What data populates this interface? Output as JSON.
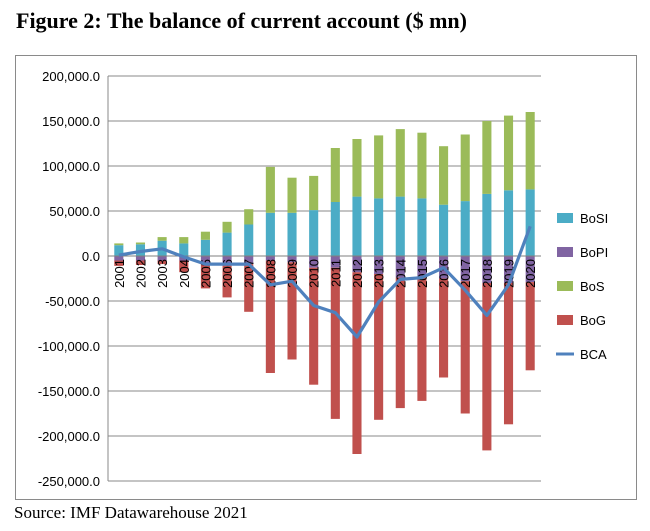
{
  "figure_title": "Figure 2: The balance of current account ($ mn)",
  "source": "Source: IMF Datawarehouse 2021",
  "colors": {
    "BoSI": "#4bacc6",
    "BoPI": "#8064a2",
    "BoS": "#9bbb59",
    "BoG": "#c0504d",
    "BCA": "#4f81bd",
    "grid": "#888888"
  },
  "chart_data": {
    "type": "bar",
    "stacked": true,
    "title": "Figure 2: The balance of current account ($ mn)",
    "xlabel": "",
    "ylabel": "",
    "ylim": [
      -250000,
      200000
    ],
    "yticks": [
      200000,
      150000,
      100000,
      50000,
      0,
      -50000,
      -100000,
      -150000,
      -200000,
      -250000
    ],
    "ytick_labels": [
      "200,000.0",
      "150,000.0",
      "100,000.0",
      "50,000.0",
      "0.0",
      "-50,000.0",
      "-100,000.0",
      "-150,000.0",
      "-200,000.0",
      "-250,000.0"
    ],
    "grid": true,
    "legend_position": "right",
    "categories": [
      "2001",
      "2002",
      "2003",
      "2004",
      "2005",
      "2006",
      "2007",
      "2008",
      "2009",
      "2010",
      "2011",
      "2012",
      "2013",
      "2014",
      "2015",
      "2016",
      "2017",
      "2018",
      "2019",
      "2020"
    ],
    "series": [
      {
        "name": "BoSI",
        "kind": "bar",
        "values": [
          12000,
          13000,
          17000,
          14000,
          18000,
          26000,
          35000,
          48000,
          48000,
          51000,
          60000,
          66000,
          64000,
          66000,
          64000,
          57000,
          61000,
          69000,
          73000,
          74000
        ]
      },
      {
        "name": "BoPI",
        "kind": "bar",
        "values": [
          -5000,
          -5000,
          -5000,
          -5000,
          -8000,
          -8000,
          -9000,
          -5000,
          -7000,
          -13000,
          -13000,
          -18000,
          -20000,
          -24000,
          -23000,
          -25000,
          -28000,
          -30000,
          -30000,
          -29000
        ]
      },
      {
        "name": "BoS",
        "kind": "bar",
        "values": [
          2000,
          2000,
          4000,
          7000,
          9000,
          12000,
          17000,
          51000,
          39000,
          38000,
          60000,
          64000,
          70000,
          75000,
          73000,
          65000,
          74000,
          81000,
          83000,
          86000
        ]
      },
      {
        "name": "BoG",
        "kind": "bar",
        "values": [
          -6000,
          -5000,
          -4000,
          -13000,
          -28000,
          -38000,
          -53000,
          -125000,
          -108000,
          -130000,
          -168000,
          -202000,
          -162000,
          -145000,
          -138000,
          -110000,
          -147000,
          -186000,
          -157000,
          -98000
        ]
      },
      {
        "name": "BCA",
        "kind": "line",
        "values": [
          1000,
          5000,
          8000,
          -1000,
          -9000,
          -9000,
          -9000,
          -32000,
          -28000,
          -55000,
          -63000,
          -90000,
          -51000,
          -26000,
          -24000,
          -13000,
          -38000,
          -66000,
          -32000,
          33000
        ]
      }
    ]
  }
}
